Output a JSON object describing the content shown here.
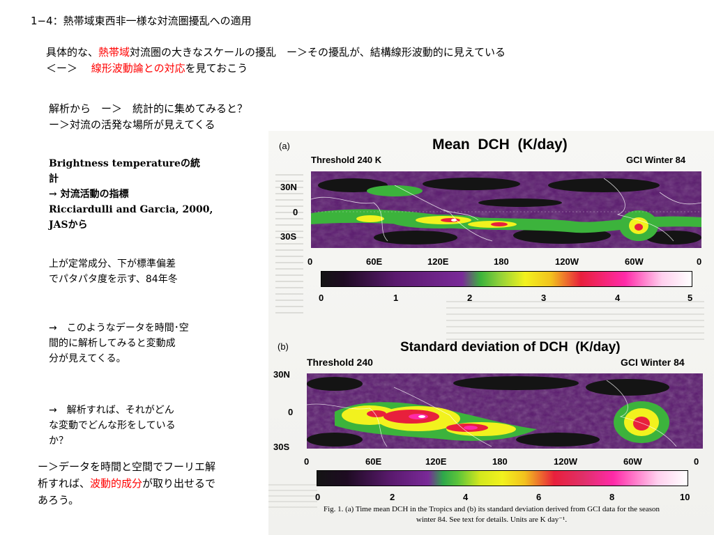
{
  "slide": {
    "heading": "1−4：熱帯域東西非一様な対流圏擾乱への適用",
    "intro_line1": {
      "pre": "具体的な、",
      "red": "熱帯域",
      "post": "対流圏の大きなスケールの擾乱　ー＞その擾乱が、結構線形波動的に見えている"
    },
    "intro_line2": {
      "pre": "＜ー＞　 ",
      "red": "線形波動論との対応",
      "post": "を見ておこう"
    },
    "analysis": [
      "解析から　ー＞　統計的に集めてみると？",
      "ー＞対流の活発な場所が見えてくる"
    ],
    "bt_lines": [
      "Brightness temperatureの統",
      "計",
      "→ 対流活動の指標",
      "Ricciardulli and Garcia, 2000,",
      "JASから"
    ],
    "stat_lines": [
      "上が定常成分、下が標準偏差",
      "でパタパタ度を示す、84年冬"
    ],
    "timespace_lines": [
      "→　このようなデータを時間･空",
      "間的に解析してみると変動成",
      "分が見えてくる。"
    ],
    "question_lines": [
      "→　解析すれば、それがどん",
      "な変動でどんな形をしている",
      "か？"
    ],
    "conclusion": {
      "line1": "ー＞データを時間と空間でフーリエ解",
      "line2_pre": "析すれば、",
      "line2_red": "波動的成分",
      "line2_post": "が取り出せるで",
      "line3": "あろう。"
    }
  },
  "figure": {
    "panel_a": {
      "letter": "(a)",
      "title": "Mean  DCH  (K/day)",
      "left_label": "Threshold 240 K",
      "right_label": "GCI Winter 84",
      "lat_labels": [
        "30N",
        "0",
        "30S"
      ],
      "lon_labels": [
        "0",
        "60E",
        "120E",
        "180",
        "120W",
        "60W",
        "0"
      ],
      "colorbar_ticks": [
        "0",
        "1",
        "2",
        "3",
        "4",
        "5"
      ]
    },
    "panel_b": {
      "letter": "(b)",
      "title": "Standard deviation of DCH  (K/day)",
      "left_label": "Threshold 240",
      "right_label": "GCI Winter 84",
      "lat_labels": [
        "30N",
        "0",
        "30S"
      ],
      "lon_labels": [
        "0",
        "60E",
        "120E",
        "180",
        "120W",
        "60W",
        "0"
      ],
      "colorbar_ticks": [
        "0",
        "2",
        "4",
        "6",
        "8",
        "10"
      ]
    },
    "caption_line1": "Fig. 1. (a) Time mean DCH in the Tropics and (b) its standard deviation derived from GCI data for the season",
    "caption_line2": "winter 84. See text for details. Units are K day⁻¹.",
    "colors": {
      "bg_purple": "#5a1a6e",
      "dark": "#141414",
      "green": "#3cb33c",
      "yellow": "#f2f21e",
      "red": "#e8203c",
      "magenta": "#ff2aa8",
      "white": "#ffffff"
    }
  }
}
